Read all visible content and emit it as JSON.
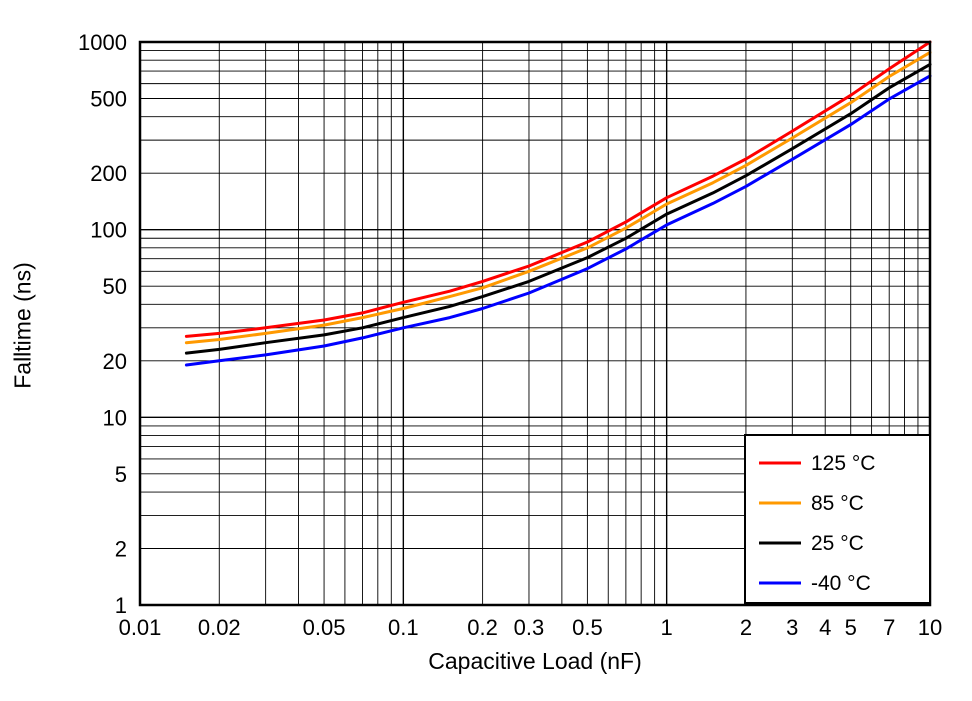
{
  "chart_data": {
    "type": "line",
    "title": "",
    "xlabel": "Capacitive Load (nF)",
    "ylabel": "Falltime (ns)",
    "x_scale": "log",
    "y_scale": "log",
    "xlim": [
      0.01,
      10
    ],
    "ylim": [
      1,
      1000
    ],
    "grid": "log minor gridlines on, thin black, full frame",
    "legend_position": "bottom-right",
    "x_tick_labels": [
      {
        "v": 0.01,
        "label": "0.01"
      },
      {
        "v": 0.02,
        "label": "0.02"
      },
      {
        "v": 0.05,
        "label": "0.05"
      },
      {
        "v": 0.1,
        "label": "0.1"
      },
      {
        "v": 0.2,
        "label": "0.2"
      },
      {
        "v": 0.3,
        "label": "0.3"
      },
      {
        "v": 0.5,
        "label": "0.5"
      },
      {
        "v": 1,
        "label": "1"
      },
      {
        "v": 2,
        "label": "2"
      },
      {
        "v": 3,
        "label": "3"
      },
      {
        "v": 4,
        "label": "4"
      },
      {
        "v": 5,
        "label": "5"
      },
      {
        "v": 7,
        "label": "7"
      },
      {
        "v": 10,
        "label": "10"
      }
    ],
    "y_tick_labels": [
      {
        "v": 1,
        "label": "1"
      },
      {
        "v": 2,
        "label": "2"
      },
      {
        "v": 5,
        "label": "5"
      },
      {
        "v": 10,
        "label": "10"
      },
      {
        "v": 20,
        "label": "20"
      },
      {
        "v": 50,
        "label": "50"
      },
      {
        "v": 100,
        "label": "100"
      },
      {
        "v": 200,
        "label": "200"
      },
      {
        "v": 500,
        "label": "500"
      },
      {
        "v": 1000,
        "label": "1000"
      }
    ],
    "x": [
      0.015,
      0.02,
      0.03,
      0.05,
      0.07,
      0.1,
      0.15,
      0.2,
      0.3,
      0.5,
      0.7,
      1,
      1.5,
      2,
      3,
      5,
      7,
      10
    ],
    "series": [
      {
        "name": "125 °C",
        "color": "#ff0000",
        "values": [
          27,
          28,
          30,
          33,
          36,
          41,
          47,
          53,
          64,
          86,
          110,
          148,
          193,
          238,
          335,
          520,
          720,
          1000
        ]
      },
      {
        "name": "85 °C",
        "color": "#ff9900",
        "values": [
          25,
          26,
          28,
          31,
          34,
          38,
          44,
          49,
          60,
          80,
          102,
          137,
          178,
          220,
          308,
          475,
          655,
          880
        ]
      },
      {
        "name": "25 °C",
        "color": "#000000",
        "values": [
          22,
          23,
          25,
          27.5,
          30,
          34,
          39,
          44,
          53,
          71,
          90,
          121,
          157,
          194,
          270,
          415,
          570,
          760
        ]
      },
      {
        "name": "-40 °C",
        "color": "#0000ff",
        "values": [
          19,
          20,
          21.5,
          24,
          26.5,
          30,
          34,
          38,
          46,
          62,
          79,
          106,
          138,
          170,
          237,
          363,
          497,
          660
        ]
      }
    ]
  }
}
